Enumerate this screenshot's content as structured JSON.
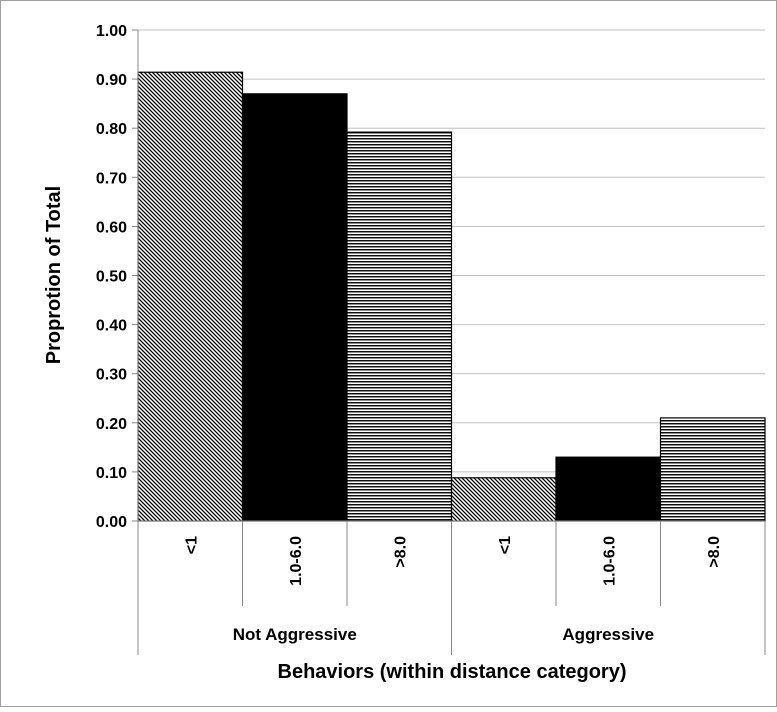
{
  "chart_data": {
    "type": "bar",
    "title": "",
    "ylabel": "Proprotion of Total",
    "xlabel": "Behaviors (within distance category)",
    "ylim": [
      0,
      1.0
    ],
    "y_ticks": [
      "0.00",
      "0.10",
      "0.20",
      "0.30",
      "0.40",
      "0.50",
      "0.60",
      "0.70",
      "0.80",
      "0.90",
      "1.00"
    ],
    "grid": true,
    "groups": [
      {
        "label": "Not Aggressive",
        "bars": [
          {
            "category": "<1",
            "value": 0.914,
            "pattern": "diagonal"
          },
          {
            "category": "1.0-6.0",
            "value": 0.87,
            "pattern": "solid"
          },
          {
            "category": ">8.0",
            "value": 0.792,
            "pattern": "horizontal"
          }
        ]
      },
      {
        "label": "Aggressive",
        "bars": [
          {
            "category": "<1",
            "value": 0.088,
            "pattern": "diagonal"
          },
          {
            "category": "1.0-6.0",
            "value": 0.13,
            "pattern": "solid"
          },
          {
            "category": ">8.0",
            "value": 0.21,
            "pattern": "horizontal"
          }
        ]
      }
    ],
    "colors": {
      "bar": "#000000",
      "grid": "#c0c0c0",
      "axis": "#888888",
      "background": "#ffffff"
    }
  }
}
